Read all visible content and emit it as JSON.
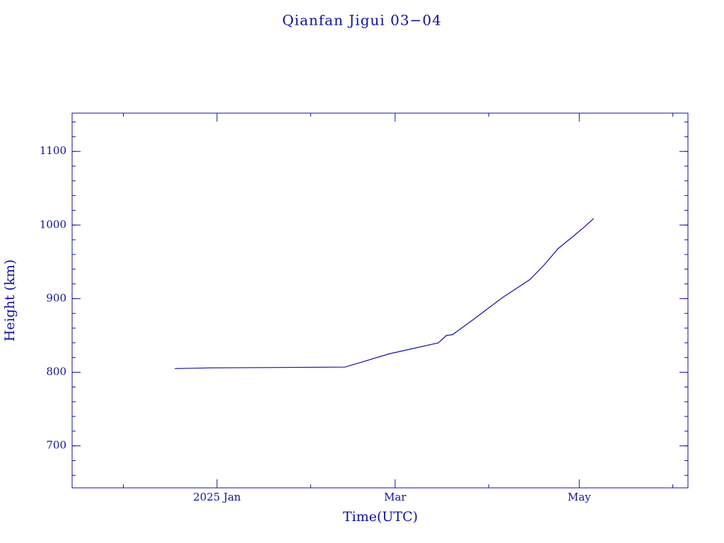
{
  "chart_data": {
    "type": "line",
    "title": "Qianfan Jigui 03−04",
    "x_label": "Time(UTC)",
    "y_label": "Height (km)",
    "color": "#1010a0",
    "xlim": [
      -48,
      156
    ],
    "xticks": [
      {
        "value": 0,
        "label": "2025 Jan"
      },
      {
        "value": 59,
        "label": "Mar"
      },
      {
        "value": 120,
        "label": "May"
      }
    ],
    "xminorticks": [
      -31,
      31,
      90,
      151
    ],
    "ylim": [
      643,
      1152
    ],
    "yticks": [
      700,
      800,
      900,
      1000,
      1100
    ],
    "yminor_step": 20,
    "series": [
      {
        "name": "Height",
        "color": "#1010a0",
        "x": [
          -14,
          -2,
          42.4,
          57,
          73.3,
          76,
          78,
          85,
          94.4,
          103.7,
          108.4,
          113,
          117.8,
          121.3,
          124.8
        ],
        "values": [
          805,
          806,
          807,
          825,
          840,
          850,
          851,
          872,
          901,
          926,
          946,
          968,
          984,
          996,
          1009
        ]
      }
    ]
  }
}
